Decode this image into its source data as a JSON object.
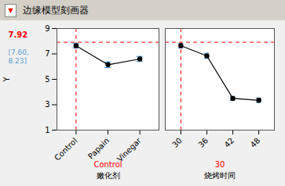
{
  "chart_data": {
    "type": "line",
    "title": "边缘模型刻画器",
    "title_icon": "▼",
    "ylabel": "Y",
    "ylim": [
      1,
      9
    ],
    "yticks": [
      1,
      3,
      5,
      7,
      9
    ],
    "hline": 7.92,
    "reference_color": "#FF0000",
    "color": "#000000",
    "error_color": "#5B9BD5",
    "marker": "o",
    "line_style": "solid",
    "grid": false,
    "background": "#F0F0F0",
    "title_background": "#D4D0C8",
    "annotations": [
      {
        "text": "7.92",
        "color": "#FF0000"
      },
      {
        "text": "[7.60,",
        "color": "#5B9BD5"
      },
      {
        "text": "8.23]",
        "color": "#5B9BD5"
      }
    ],
    "panels": [
      {
        "categories": [
          "Control",
          "Papain",
          "Vinegar"
        ],
        "values": [
          7.65,
          6.15,
          6.6
        ],
        "errors": [
          0.18,
          0.22,
          0.2
        ],
        "vline": "Control",
        "xlabels": [
          {
            "text": "Control",
            "color": "#FF0000"
          },
          {
            "text": "嫩化剂",
            "color": "#000000"
          }
        ]
      },
      {
        "categories": [
          "30",
          "36",
          "42",
          "48"
        ],
        "values": [
          7.65,
          6.85,
          3.5,
          3.35
        ],
        "errors": [
          0.18,
          0.2,
          0.16,
          0.18
        ],
        "vline": "30",
        "tick_labels": "x",
        "xlabels": [
          {
            "text": "30",
            "color": "#FF0000"
          },
          {
            "text": "烧烤时间",
            "color": "#000000"
          }
        ]
      }
    ]
  }
}
